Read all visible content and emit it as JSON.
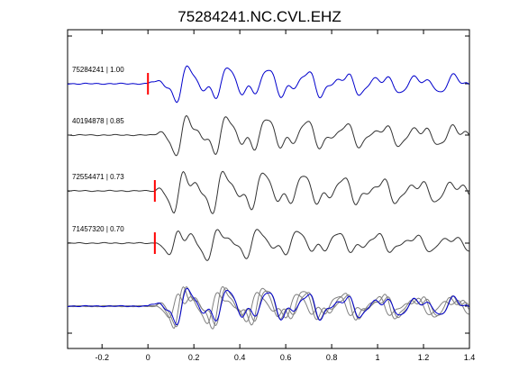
{
  "chart_data": {
    "type": "line",
    "title": "75284241.NC.CVL.EHZ",
    "xlabel": "",
    "ylabel": "",
    "xlim": [
      -0.35,
      1.4
    ],
    "xticks": [
      -0.2,
      0,
      0.2,
      0.4,
      0.6,
      0.8,
      1,
      1.2,
      1.4
    ],
    "xtick_labels": [
      "-0.2",
      "0",
      "0.2",
      "0.4",
      "0.6",
      "0.8",
      "1",
      "1.2",
      "1.4"
    ],
    "grid": false,
    "legend": "none",
    "colors": {
      "primary_trace": "#0000cc",
      "other_trace": "#333333",
      "overlay_trace": "#808080",
      "pick_marker": "#ff0000"
    },
    "traces": [
      {
        "label": "75284241 | 1.00",
        "pick_time": 0.0,
        "color": "#0000cc",
        "seed": 1,
        "onset": 0.0,
        "amp": 1.0
      },
      {
        "label": "40194878 | 0.85",
        "pick_time": null,
        "color": "#333333",
        "seed": 2,
        "onset": 0.02,
        "amp": 1.1
      },
      {
        "label": "72554471 | 0.73",
        "pick_time": 0.03,
        "color": "#333333",
        "seed": 3,
        "onset": 0.03,
        "amp": 1.2
      },
      {
        "label": "71457320 | 0.70",
        "pick_time": 0.03,
        "color": "#333333",
        "seed": 4,
        "onset": 0.03,
        "amp": 0.9
      }
    ],
    "stack": {
      "label": "",
      "colors": [
        "#808080",
        "#808080",
        "#808080",
        "#0000cc"
      ]
    }
  }
}
